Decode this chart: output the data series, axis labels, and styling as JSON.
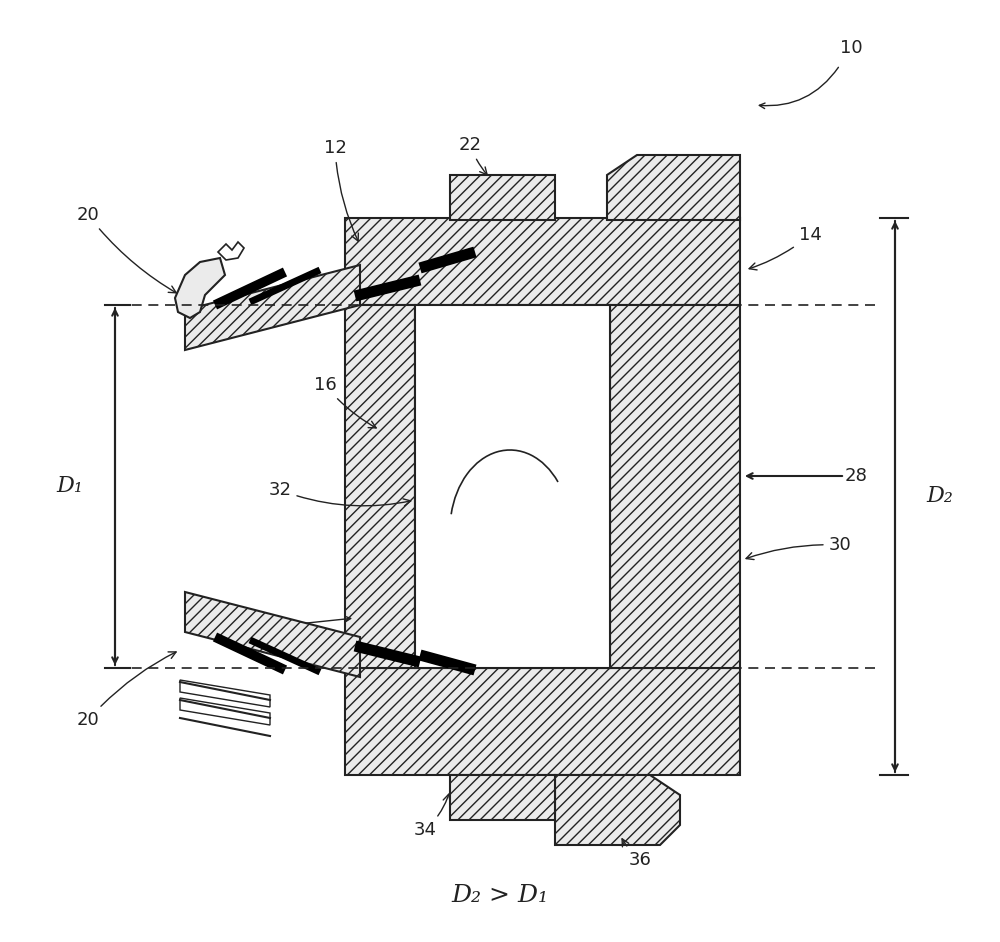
{
  "bg_color": "#ffffff",
  "line_color": "#222222",
  "hatch_lw": 0.6,
  "title_text": "D₂ > D₁",
  "label_fontsize": 13,
  "annotation_fontsize": 13
}
